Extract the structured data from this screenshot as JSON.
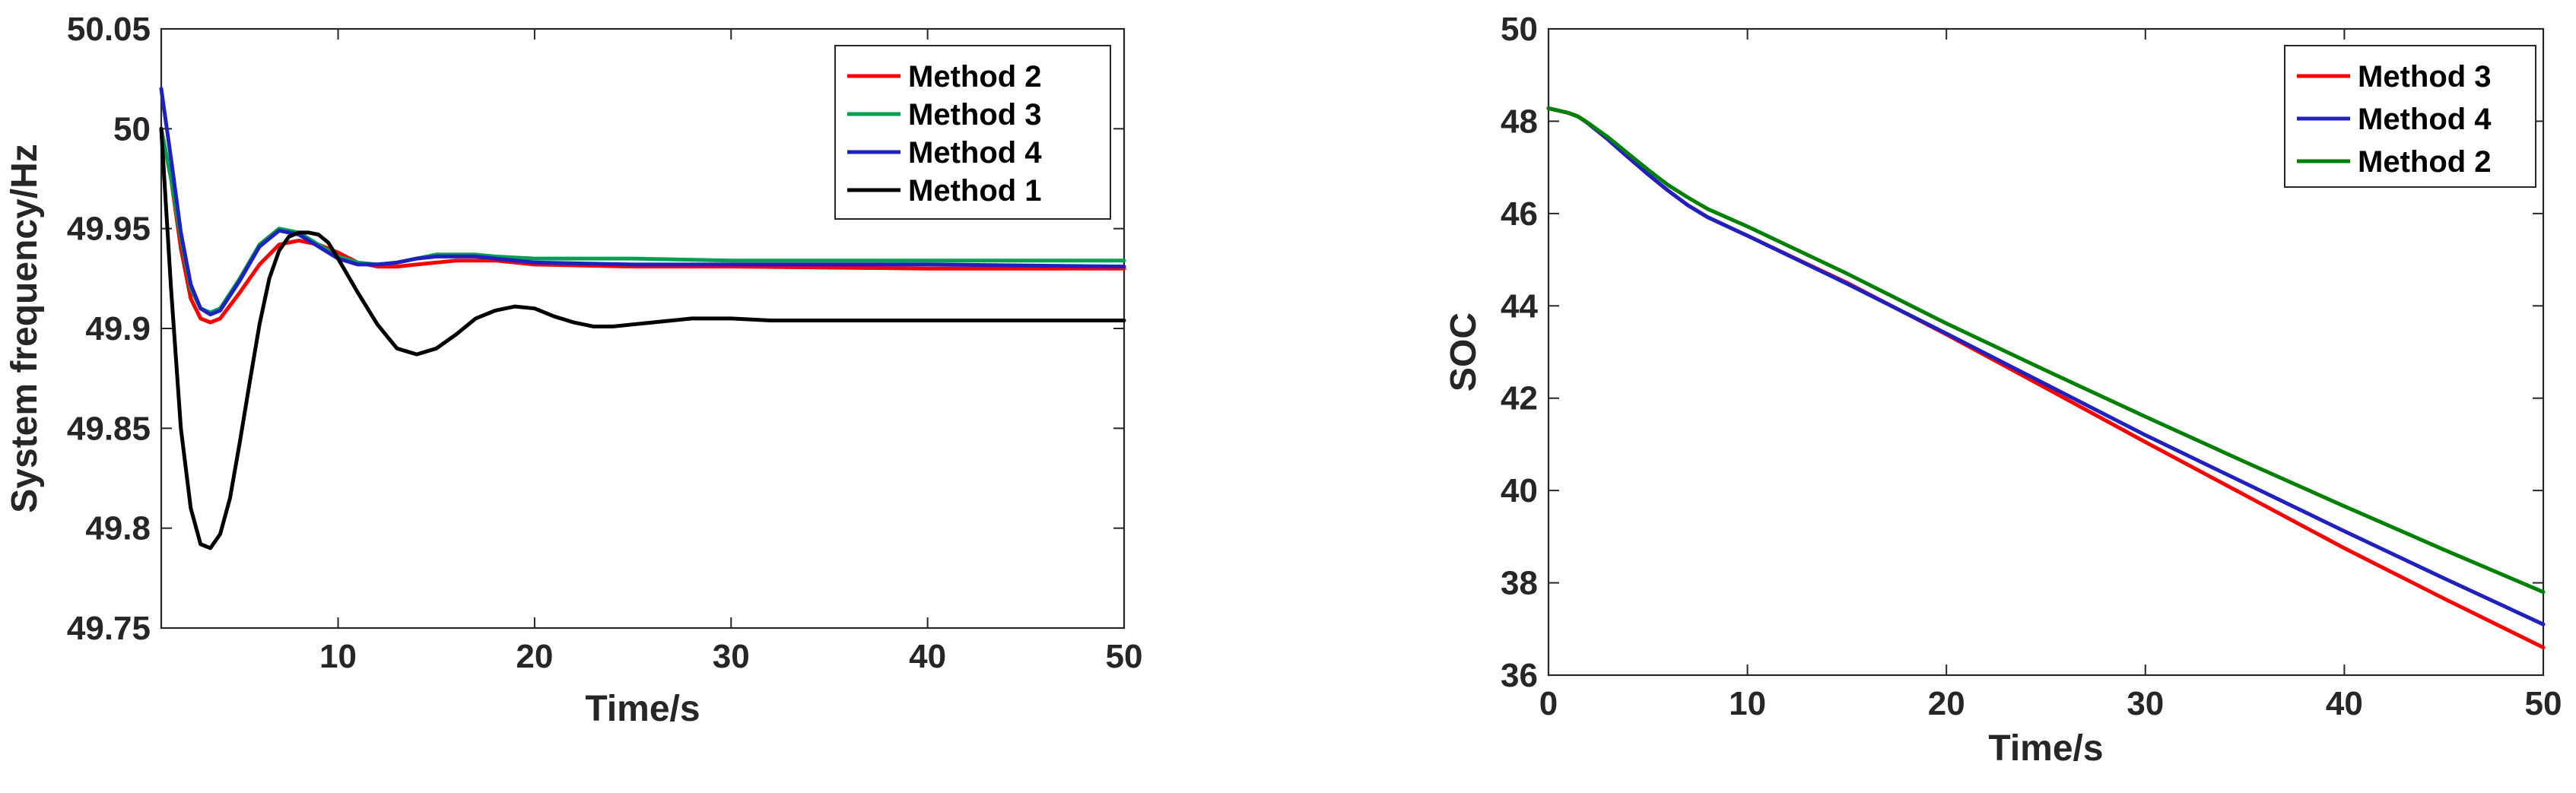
{
  "chart_data": [
    {
      "type": "line",
      "xlabel": "Time/s",
      "ylabel": "System frequency/Hz",
      "xlim": [
        1,
        50
      ],
      "ylim": [
        49.75,
        50.05
      ],
      "xticks": [
        "10",
        "20",
        "30",
        "40",
        "50"
      ],
      "yticks": [
        "49.75",
        "49.8",
        "49.85",
        "49.9",
        "49.95",
        "50",
        "50.05"
      ],
      "grid": false,
      "legend": "top-right",
      "series": [
        {
          "name": "Method 2",
          "color": "#ff0000",
          "x": [
            1,
            1.5,
            2,
            2.5,
            3,
            3.5,
            4,
            5,
            6,
            7,
            8,
            9,
            10,
            11,
            12,
            13,
            14,
            15,
            16,
            18,
            20,
            25,
            30,
            40,
            50
          ],
          "y": [
            50.0,
            49.975,
            49.94,
            49.915,
            49.905,
            49.903,
            49.905,
            49.918,
            49.932,
            49.942,
            49.944,
            49.942,
            49.938,
            49.933,
            49.931,
            49.931,
            49.932,
            49.933,
            49.934,
            49.934,
            49.932,
            49.931,
            49.931,
            49.93,
            49.93
          ]
        },
        {
          "name": "Method 3",
          "color": "#00a050",
          "x": [
            1,
            1.5,
            2,
            2.5,
            3,
            3.5,
            4,
            5,
            6,
            7,
            8,
            9,
            10,
            11,
            12,
            13,
            14,
            15,
            16,
            17,
            18,
            20,
            25,
            30,
            40,
            50
          ],
          "y": [
            50.0,
            49.975,
            49.945,
            49.92,
            49.91,
            49.908,
            49.91,
            49.925,
            49.942,
            49.95,
            49.948,
            49.942,
            49.936,
            49.933,
            49.932,
            49.933,
            49.935,
            49.937,
            49.937,
            49.937,
            49.936,
            49.935,
            49.935,
            49.934,
            49.934,
            49.934
          ]
        },
        {
          "name": "Method 4",
          "color": "#2020c0",
          "x": [
            1,
            1.5,
            2,
            2.5,
            3,
            3.5,
            4,
            5,
            6,
            7,
            8,
            9,
            10,
            11,
            12,
            13,
            14,
            15,
            16,
            17,
            18,
            20,
            25,
            30,
            40,
            50
          ],
          "y": [
            50.02,
            49.985,
            49.948,
            49.922,
            49.91,
            49.907,
            49.909,
            49.924,
            49.941,
            49.949,
            49.947,
            49.941,
            49.935,
            49.932,
            49.932,
            49.933,
            49.935,
            49.936,
            49.936,
            49.936,
            49.935,
            49.933,
            49.932,
            49.932,
            49.932,
            49.931
          ]
        },
        {
          "name": "Method 1",
          "color": "#000000",
          "x": [
            1,
            1.5,
            2,
            2.5,
            3,
            3.5,
            4,
            4.5,
            5,
            5.5,
            6,
            6.5,
            7,
            7.5,
            8,
            8.5,
            9,
            9.5,
            10,
            11,
            12,
            13,
            14,
            15,
            16,
            17,
            18,
            19,
            20,
            21,
            22,
            23,
            24,
            25,
            26,
            27,
            28,
            29,
            30,
            32,
            34,
            36,
            40,
            45,
            50
          ],
          "y": [
            50.0,
            49.92,
            49.85,
            49.81,
            49.792,
            49.79,
            49.797,
            49.815,
            49.843,
            49.873,
            49.902,
            49.925,
            49.939,
            49.946,
            49.948,
            49.948,
            49.947,
            49.943,
            49.935,
            49.918,
            49.902,
            49.89,
            49.887,
            49.89,
            49.897,
            49.905,
            49.909,
            49.911,
            49.91,
            49.906,
            49.903,
            49.901,
            49.901,
            49.902,
            49.903,
            49.904,
            49.905,
            49.905,
            49.905,
            49.904,
            49.904,
            49.904,
            49.904,
            49.904,
            49.904
          ]
        }
      ]
    },
    {
      "type": "line",
      "xlabel": "Time/s",
      "ylabel": "SOC",
      "xlim": [
        0,
        50
      ],
      "ylim": [
        36,
        50
      ],
      "xticks": [
        "0",
        "10",
        "20",
        "30",
        "40",
        "50"
      ],
      "yticks": [
        "36",
        "38",
        "40",
        "42",
        "44",
        "46",
        "48",
        "50"
      ],
      "grid": false,
      "legend": "top-right",
      "series": [
        {
          "name": "Method 3",
          "color": "#ff0000",
          "x": [
            0,
            1,
            1.5,
            2,
            3,
            4,
            5,
            6,
            7,
            8,
            10,
            15,
            20,
            25,
            30,
            35,
            40,
            45,
            50
          ],
          "y": [
            48.28,
            48.18,
            48.1,
            47.95,
            47.6,
            47.22,
            46.85,
            46.5,
            46.18,
            45.92,
            45.52,
            44.5,
            43.38,
            42.22,
            41.05,
            39.9,
            38.75,
            37.66,
            36.6
          ]
        },
        {
          "name": "Method 4",
          "color": "#2020c0",
          "x": [
            0,
            1,
            1.5,
            2,
            3,
            4,
            5,
            6,
            7,
            8,
            10,
            15,
            20,
            25,
            30,
            35,
            40,
            45,
            50
          ],
          "y": [
            48.28,
            48.18,
            48.1,
            47.95,
            47.6,
            47.22,
            46.85,
            46.5,
            46.18,
            45.92,
            45.52,
            44.48,
            43.4,
            42.3,
            41.2,
            40.16,
            39.12,
            38.1,
            37.1
          ]
        },
        {
          "name": "Method 2",
          "color": "#008000",
          "x": [
            0,
            1,
            1.5,
            2,
            3,
            4,
            5,
            6,
            7,
            8,
            10,
            15,
            20,
            25,
            30,
            35,
            40,
            45,
            50
          ],
          "y": [
            48.28,
            48.18,
            48.1,
            47.96,
            47.65,
            47.3,
            46.95,
            46.62,
            46.35,
            46.1,
            45.72,
            44.7,
            43.62,
            42.6,
            41.6,
            40.62,
            39.66,
            38.72,
            37.8
          ]
        }
      ]
    }
  ]
}
